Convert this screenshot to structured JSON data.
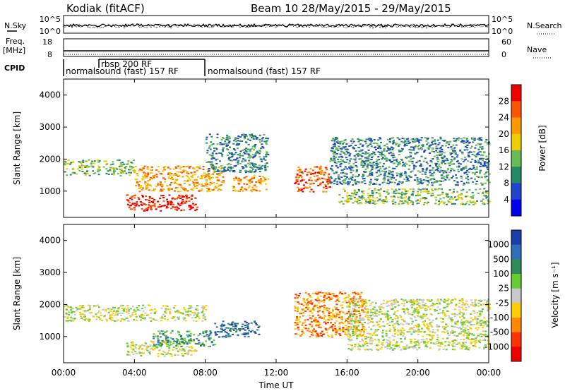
{
  "header": {
    "station": "Kodiak (fitACF)",
    "beam_dates": "Beam 10 28/May/2015 - 29/May/2015"
  },
  "nsky_panel": {
    "left_label": "N.Sky",
    "left_ticks": [
      "10^5",
      "10^0"
    ],
    "right_label": "N.Search",
    "right_ticks": [
      "10^5",
      "10^0"
    ]
  },
  "freq_panel": {
    "left_label_line1": "Freq.",
    "left_label_line2": "[MHz]",
    "left_ticks": [
      "18",
      "8"
    ],
    "right_label": "Nave",
    "right_ticks": [
      "60",
      "0"
    ]
  },
  "cpid_panel": {
    "label": "CPID",
    "modes": [
      "normalsound (fast) 157 RF",
      "rbsp 200 RF",
      "normalsound (fast) 157 RF"
    ]
  },
  "power_colorbar": {
    "label": "Power [dB]",
    "ticks": [
      "28",
      "24",
      "20",
      "16",
      "12",
      "8",
      "4"
    ],
    "colors": [
      "#0000ee",
      "#2244cc",
      "#228866",
      "#66bb55",
      "#eecc00",
      "#ff9900",
      "#ff5500",
      "#ee0000"
    ]
  },
  "velocity_colorbar": {
    "label": "Velocity [m s⁻¹]",
    "ticks": [
      "1000",
      "500",
      "100",
      "25",
      "-25",
      "-100",
      "-500",
      "-1000"
    ],
    "colors": [
      "#1a3fa8",
      "#2f6fb8",
      "#2e8b57",
      "#66cc33",
      "#c8c8c8",
      "#ffcc00",
      "#ff8800",
      "#ff3300",
      "#ee0000"
    ]
  },
  "chart_data": {
    "type": "heatmap",
    "title": "Kodiak (fitACF) Beam 10 28/May/2015 - 29/May/2015",
    "xlabel": "Time UT",
    "ylabel": "Slant Range [km]",
    "x_ticks": [
      "00:00",
      "04:00",
      "08:00",
      "12:00",
      "16:00",
      "20:00",
      "00:00"
    ],
    "xlim_hours": [
      0,
      24
    ],
    "y_ticks": [
      "4000",
      "3000",
      "2000",
      "1000"
    ],
    "ylim_km": [
      180,
      4500
    ],
    "panels": [
      {
        "name": "Power",
        "colorbar_label": "Power [dB]",
        "colorbar_ticks": [
          28,
          24,
          20,
          16,
          12,
          8,
          4
        ],
        "echo_regions": [
          {
            "t": [
              0.0,
              4.0
            ],
            "range_km": [
              1500,
              2000
            ],
            "level": "12"
          },
          {
            "t": [
              3.5,
              7.5
            ],
            "range_km": [
              400,
              900
            ],
            "level": "28"
          },
          {
            "t": [
              4.0,
              9.0
            ],
            "range_km": [
              1000,
              1800
            ],
            "level": "20"
          },
          {
            "t": [
              8.0,
              11.5
            ],
            "range_km": [
              1600,
              2800
            ],
            "level": "8"
          },
          {
            "t": [
              9.5,
              11.5
            ],
            "range_km": [
              1000,
              1500
            ],
            "level": "20"
          },
          {
            "t": [
              13.0,
              15.0
            ],
            "range_km": [
              1000,
              1800
            ],
            "level": "24"
          },
          {
            "t": [
              15.0,
              24.0
            ],
            "range_km": [
              1200,
              2700
            ],
            "level": "8"
          },
          {
            "t": [
              15.5,
              24.0
            ],
            "range_km": [
              600,
              1100
            ],
            "level": "12"
          }
        ]
      },
      {
        "name": "Velocity",
        "colorbar_label": "Velocity [m s⁻¹]",
        "colorbar_ticks": [
          1000,
          500,
          100,
          25,
          -25,
          -100,
          -500,
          -1000
        ],
        "echo_regions": [
          {
            "t": [
              0.0,
              8.0
            ],
            "range_km": [
              1500,
              2000
            ],
            "level": "-25"
          },
          {
            "t": [
              3.5,
              7.5
            ],
            "range_km": [
              400,
              900
            ],
            "level": "-25"
          },
          {
            "t": [
              5.0,
              8.5
            ],
            "range_km": [
              700,
              1200
            ],
            "level": "100"
          },
          {
            "t": [
              8.5,
              11.0
            ],
            "range_km": [
              1000,
              1500
            ],
            "level": "500"
          },
          {
            "t": [
              13.0,
              17.0
            ],
            "range_km": [
              1000,
              2400
            ],
            "level": "-500"
          },
          {
            "t": [
              16.0,
              24.0
            ],
            "range_km": [
              600,
              2200
            ],
            "level": "-25"
          }
        ]
      }
    ]
  }
}
